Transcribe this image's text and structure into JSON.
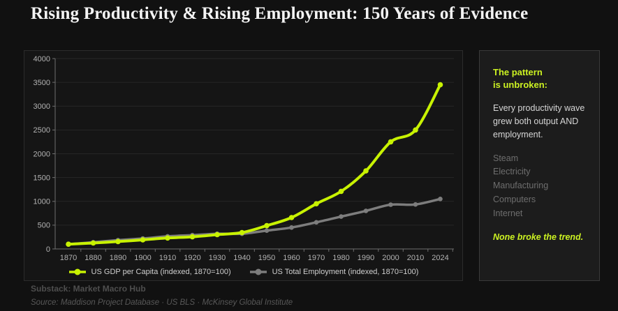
{
  "page": {
    "title": "Rising Productivity & Rising Employment: 150 Years of Evidence",
    "substack_line": "Substack: Market Macro Hub",
    "source_line": "Source: Maddison Project Database · US BLS · McKinsey Global Institute"
  },
  "colors": {
    "accent_green": "#c8f202",
    "employment_gray": "#7d7d7d",
    "grid": "#262626",
    "axis": "#6f6f6f",
    "tick_label": "#b3b3b3",
    "page_bg": "#111111",
    "card_bg": "#151515",
    "panel_bg": "#1c1c1c"
  },
  "chart_data": {
    "type": "line",
    "title": "",
    "xlabel": "",
    "ylabel": "",
    "categories": [
      "1870",
      "1880",
      "1890",
      "1900",
      "1910",
      "1920",
      "1930",
      "1940",
      "1950",
      "1960",
      "1970",
      "1980",
      "1990",
      "2000",
      "2010",
      "2024"
    ],
    "series": [
      {
        "name": "US GDP per Capita (indexed, 1870=100)",
        "color": "#c8f202",
        "values": [
          100,
          125,
          155,
          190,
          230,
          255,
          300,
          345,
          490,
          660,
          950,
          1210,
          1640,
          2250,
          2500,
          3450
        ]
      },
      {
        "name": "US Total Employment (indexed, 1870=100)",
        "color": "#7d7d7d",
        "values": [
          100,
          140,
          185,
          220,
          265,
          290,
          320,
          320,
          385,
          450,
          560,
          680,
          800,
          930,
          935,
          1050
        ]
      }
    ],
    "ylim": [
      0,
      4000
    ],
    "ytick_step": 500,
    "grid": true,
    "legend_position": "bottom"
  },
  "panel": {
    "heading": "The pattern\nis unbroken:",
    "body": "Every productivity wave\ngrew both output AND\nemployment.",
    "waves": [
      "Steam",
      "Electricity",
      "Manufacturing",
      "Computers",
      "Internet"
    ],
    "footer": "None broke the trend."
  }
}
